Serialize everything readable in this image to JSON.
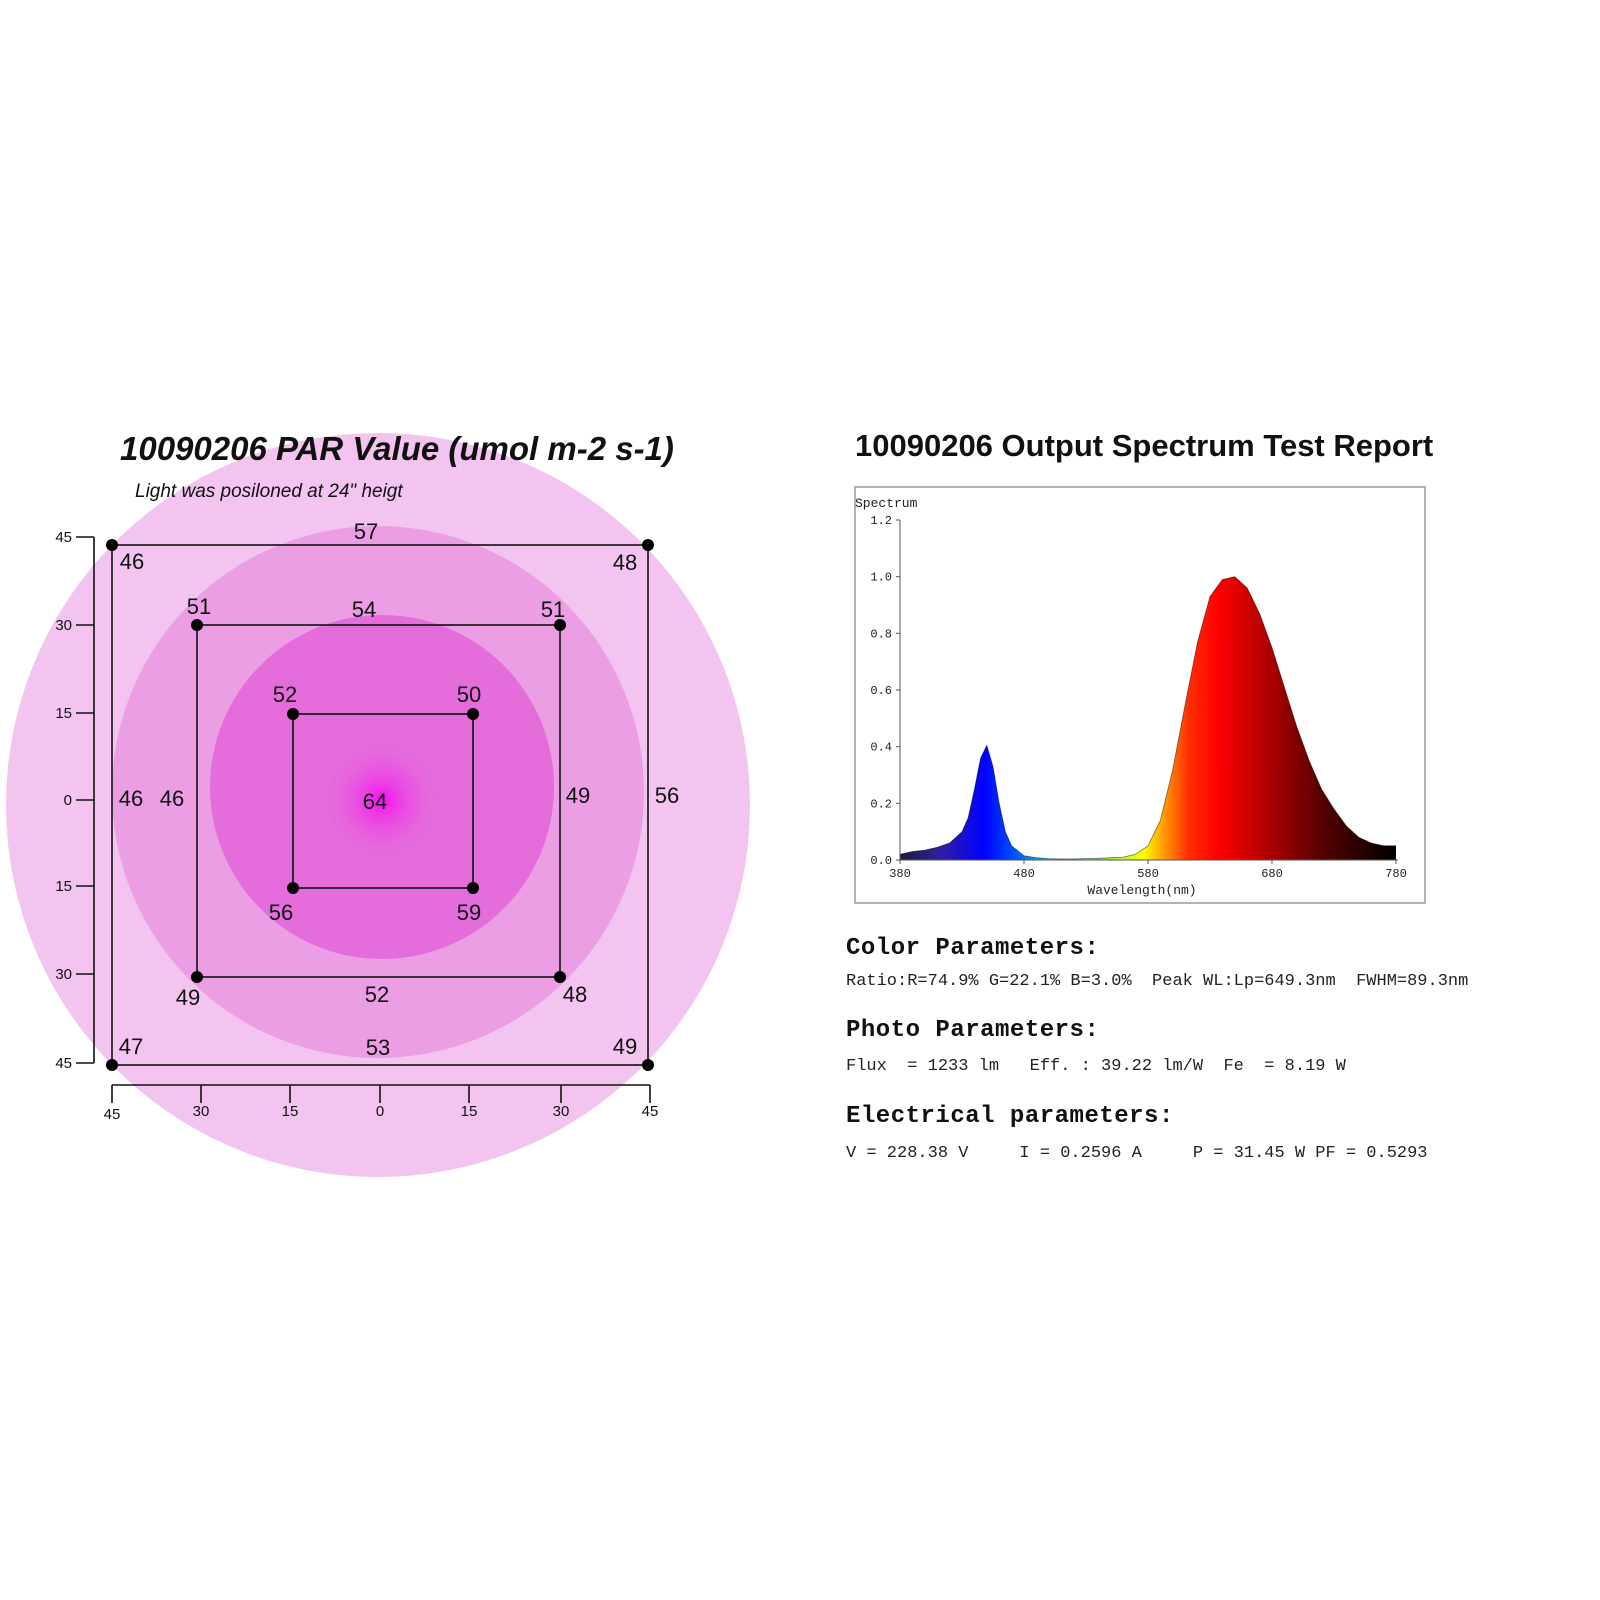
{
  "par": {
    "title": "10090206 PAR Value (umol m-2 s-1)",
    "subtitle": "Light was posiloned at 24\" heigt",
    "rings_colors": [
      "#f3c4ef",
      "#ec9ee4",
      "#e46cdb",
      "#f60ff0"
    ],
    "axis_ticks_y": [
      "45",
      "30",
      "15",
      "0",
      "15",
      "30",
      "45"
    ],
    "axis_ticks_x": [
      "45",
      "30",
      "15",
      "0",
      "15",
      "30",
      "45"
    ],
    "values": {
      "outer_top_left": "46",
      "outer_top_mid": "57",
      "outer_top_right": "48",
      "outer_mid_left": "46",
      "outer_mid_right": "56",
      "outer_bottom_left": "47",
      "outer_bottom_mid": "53",
      "outer_bottom_right": "49",
      "middle_top_left": "51",
      "middle_top_mid": "54",
      "middle_top_right": "51",
      "middle_mid_left": "46",
      "middle_mid_right": "49",
      "middle_bottom_left": "49",
      "middle_bottom_mid": "52",
      "middle_bottom_right": "48",
      "inner_top_left": "52",
      "inner_top_right": "50",
      "inner_bottom_left": "56",
      "inner_bottom_right": "59",
      "center": "64"
    }
  },
  "spectrum": {
    "title": "10090206 Output Spectrum Test Report",
    "chart_label": "Spectrum",
    "xlabel": "Wavelength(nm)"
  },
  "chart_data": {
    "type": "area",
    "title": "",
    "ylabel": "Spectrum",
    "xlabel": "Wavelength(nm)",
    "xlim": [
      380,
      780
    ],
    "ylim": [
      0,
      1.2
    ],
    "x_ticks": [
      "380",
      "480",
      "580",
      "680",
      "780"
    ],
    "y_ticks": [
      "0.0",
      "0.2",
      "0.4",
      "0.6",
      "0.8",
      "1.0",
      "1.2"
    ],
    "grid": false,
    "series": [
      {
        "x": [
          380,
          390,
          400,
          410,
          420,
          430,
          435,
          440,
          445,
          450,
          455,
          460,
          465,
          470,
          480,
          490,
          500,
          510,
          520,
          540,
          560,
          570,
          580,
          590,
          600,
          610,
          620,
          630,
          640,
          650,
          660,
          670,
          680,
          690,
          700,
          710,
          720,
          730,
          740,
          750,
          760,
          770,
          780
        ],
        "y": [
          0.02,
          0.03,
          0.035,
          0.045,
          0.06,
          0.1,
          0.15,
          0.25,
          0.36,
          0.405,
          0.33,
          0.2,
          0.1,
          0.05,
          0.015,
          0.008,
          0.005,
          0.004,
          0.004,
          0.006,
          0.01,
          0.02,
          0.05,
          0.14,
          0.32,
          0.55,
          0.77,
          0.93,
          0.99,
          1.0,
          0.96,
          0.87,
          0.75,
          0.61,
          0.47,
          0.35,
          0.25,
          0.18,
          0.12,
          0.08,
          0.06,
          0.05,
          0.05
        ]
      }
    ]
  },
  "params": {
    "color_heading": "Color Parameters:",
    "color_line": "Ratio:R=74.9% G=22.1% B=3.0%  Peak WL:Lp=649.3nm  FWHM=89.3nm",
    "photo_heading": "Photo Parameters:",
    "photo_line": "Flux  = 1233 lm   Eff. : 39.22 lm/W  Fe  = 8.19 W",
    "elec_heading": "Electrical parameters:",
    "elec_line": "V = 228.38 V     I = 0.2596 A     P = 31.45 W PF = 0.5293"
  }
}
